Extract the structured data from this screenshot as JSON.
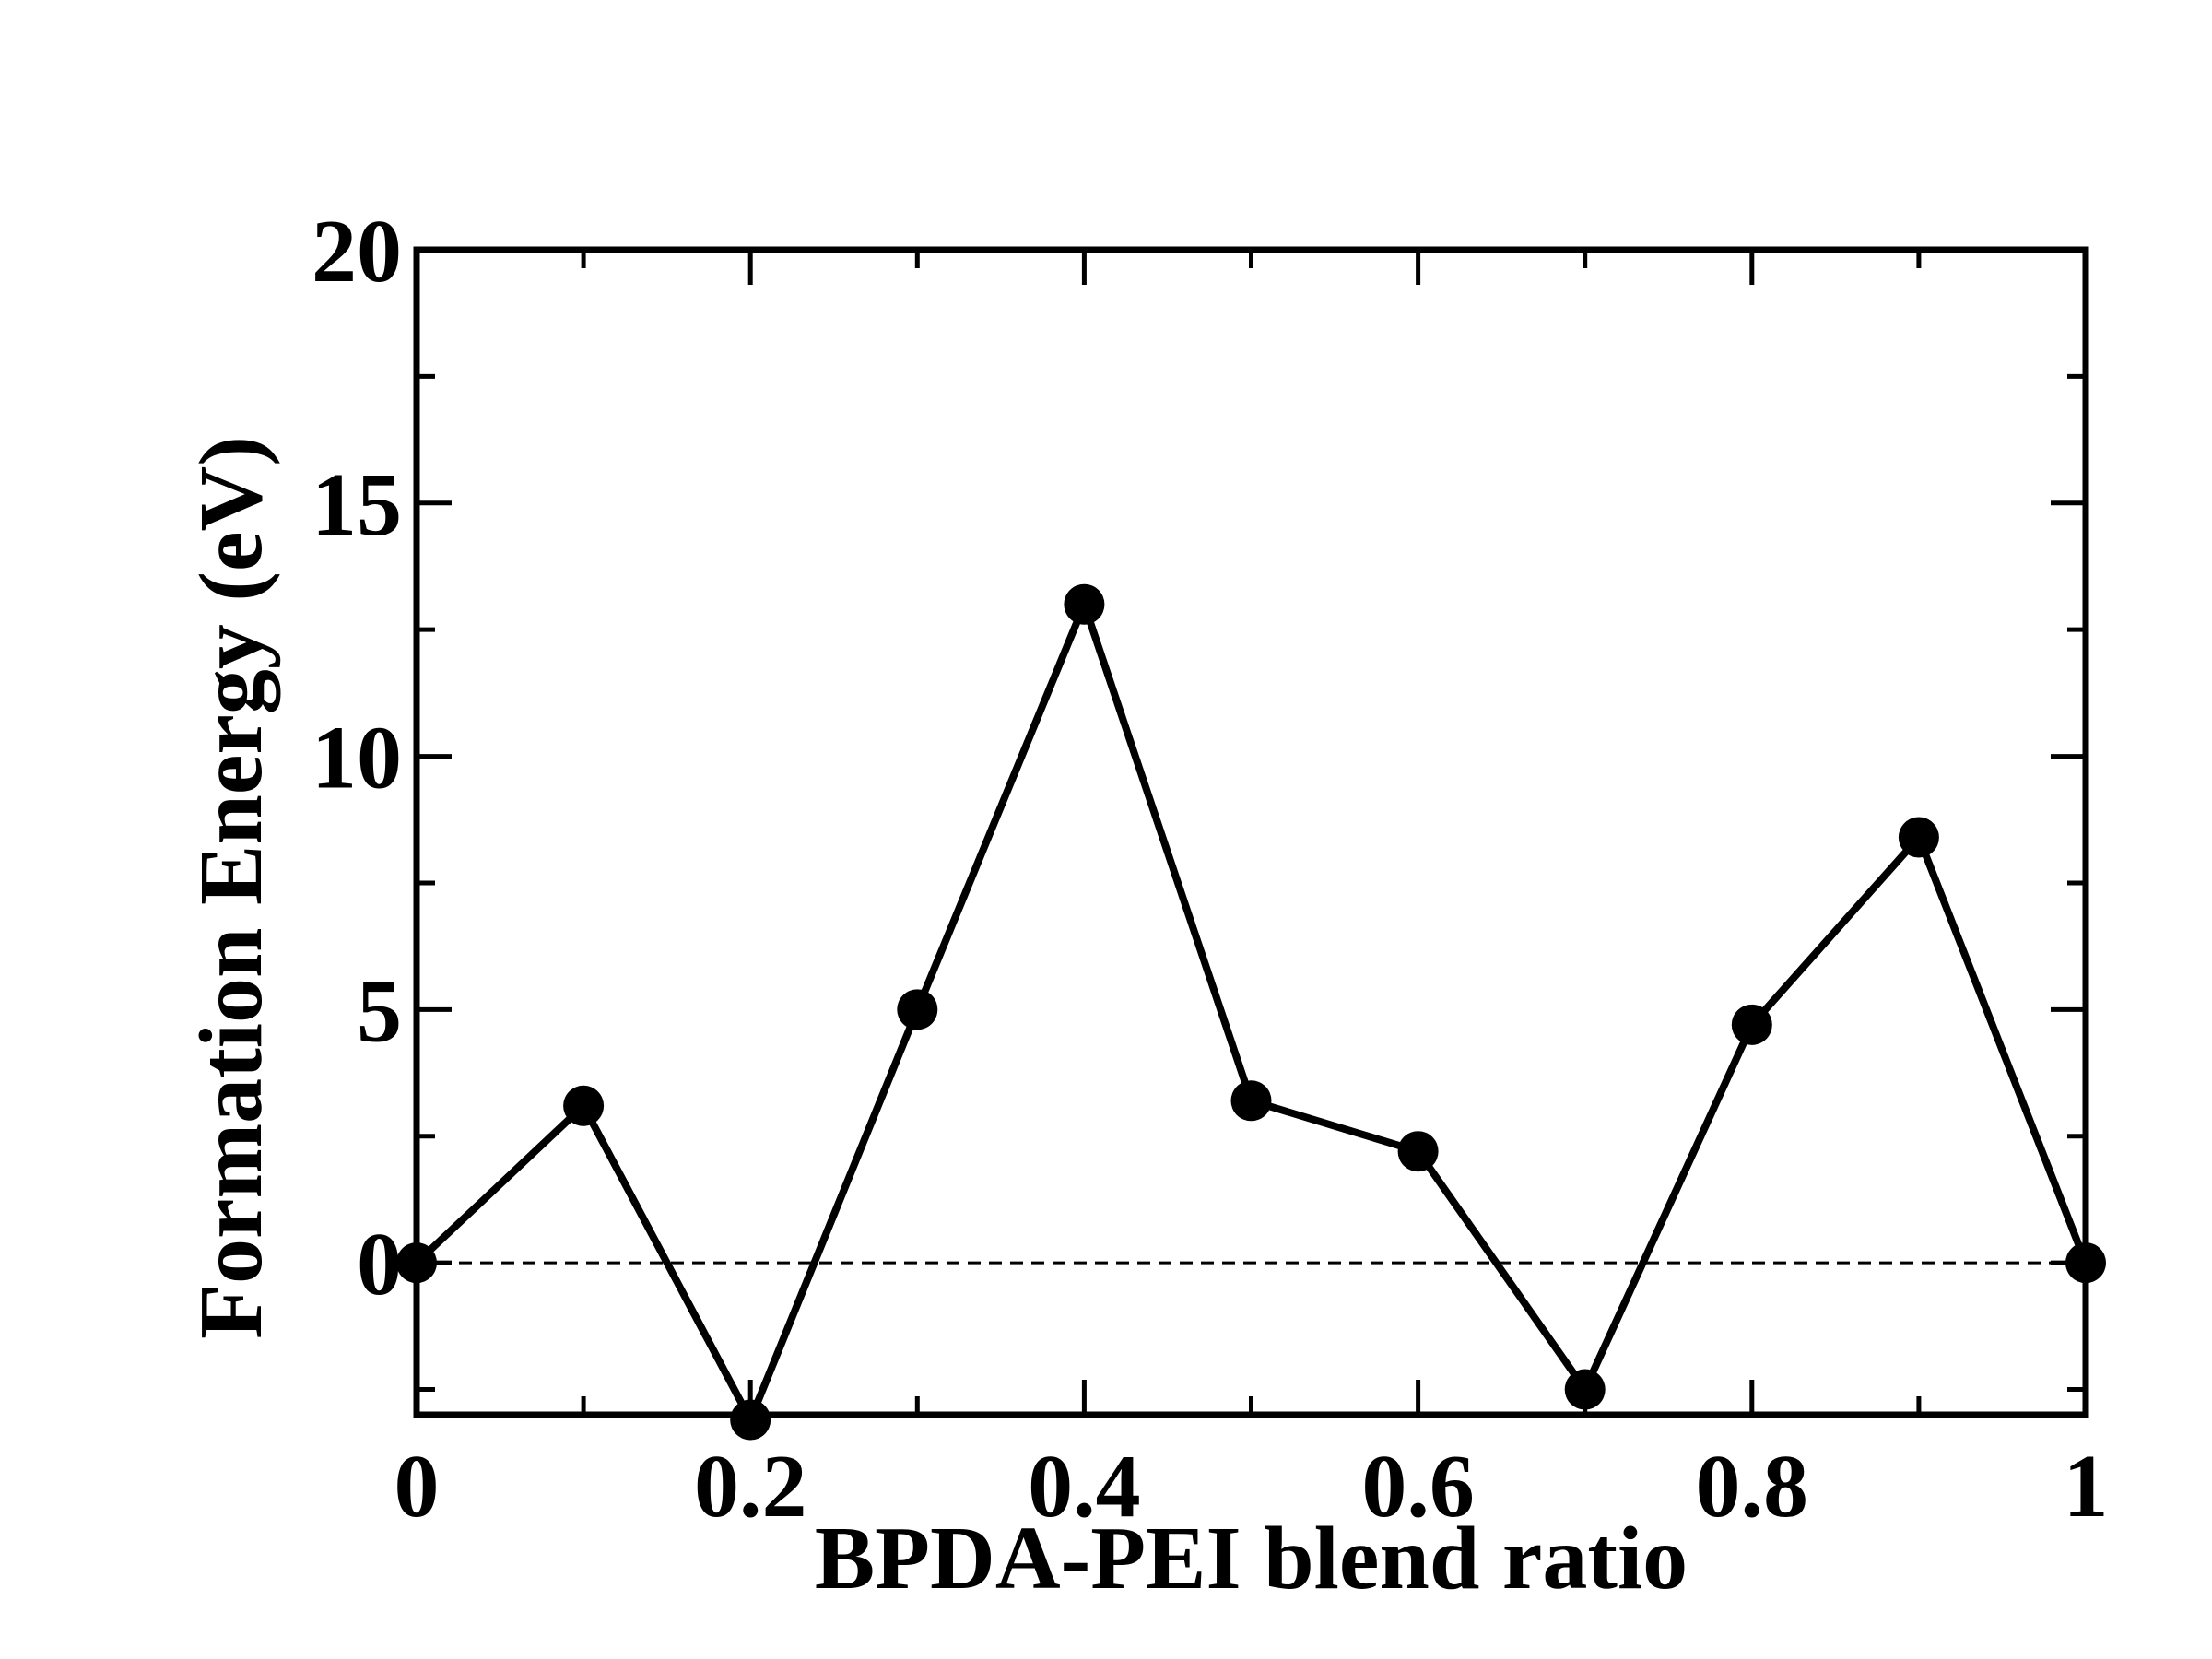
{
  "chart_data": {
    "type": "line",
    "title": "",
    "xlabel": "BPDA-PEI blend ratio",
    "ylabel": "Formation Energy (eV)",
    "xlim": [
      0,
      1
    ],
    "ylim": [
      -3,
      20
    ],
    "x_ticks": [
      0,
      0.2,
      0.4,
      0.6,
      0.8,
      1
    ],
    "x_tick_labels": [
      "0",
      "0.2",
      "0.4",
      "0.6",
      "0.8",
      "1"
    ],
    "y_ticks": [
      0,
      5,
      10,
      15,
      20
    ],
    "y_tick_labels": [
      "0",
      "5",
      "10",
      "15",
      "20"
    ],
    "grid": false,
    "reference_line": {
      "y": 0,
      "style": "dashed",
      "color": "#000000"
    },
    "series": [
      {
        "color": "#000000",
        "marker": "filled-circle",
        "x": [
          0,
          0.1,
          0.2,
          0.3,
          0.4,
          0.5,
          0.6,
          0.7,
          0.8,
          0.9,
          1.0
        ],
        "y": [
          0.0,
          3.1,
          -3.1,
          5.0,
          13.0,
          3.2,
          2.2,
          -2.5,
          4.7,
          8.4,
          0.0
        ]
      }
    ]
  }
}
